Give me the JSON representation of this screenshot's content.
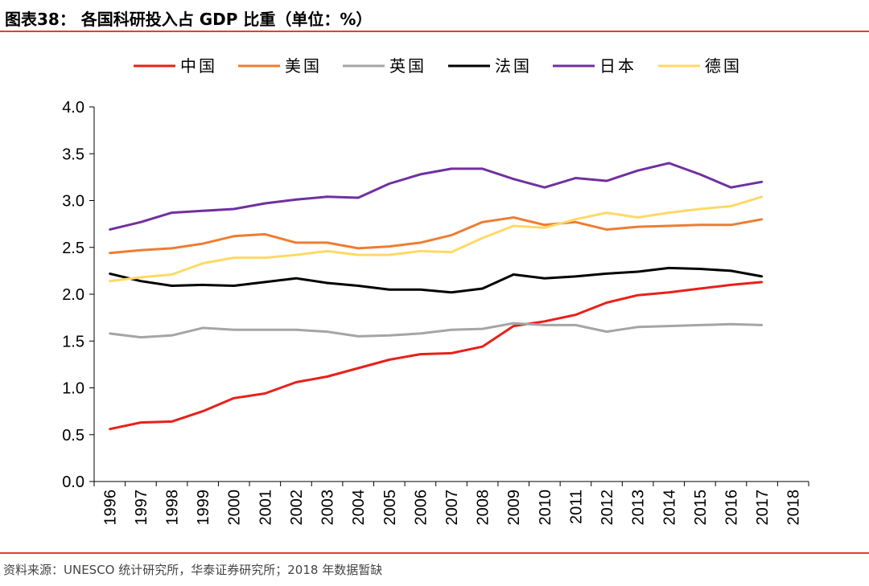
{
  "header": {
    "title": "图表38： 各国科研投入占 GDP 比重（单位：%）"
  },
  "footer": {
    "source": "资料来源：UNESCO 统计研究所，华泰证券研究所；2018 年数据暂缺"
  },
  "chart_data": {
    "type": "line",
    "title": "各国科研投入占 GDP 比重（单位：%）",
    "xlabel": "",
    "ylabel": "",
    "ylim": [
      0,
      4
    ],
    "yticks": [
      "0.0",
      "0.5",
      "1.0",
      "1.5",
      "2.0",
      "2.5",
      "3.0",
      "3.5",
      "4.0"
    ],
    "categories": [
      "1996",
      "1997",
      "1998",
      "1999",
      "2000",
      "2001",
      "2002",
      "2003",
      "2004",
      "2005",
      "2006",
      "2007",
      "2008",
      "2009",
      "2010",
      "2011",
      "2012",
      "2013",
      "2014",
      "2015",
      "2016",
      "2017",
      "2018"
    ],
    "legend_position": "top",
    "series": [
      {
        "name": "中国",
        "color": "#e8201a",
        "values": [
          0.56,
          0.63,
          0.64,
          0.75,
          0.89,
          0.94,
          1.06,
          1.12,
          1.21,
          1.3,
          1.36,
          1.37,
          1.44,
          1.66,
          1.71,
          1.78,
          1.91,
          1.99,
          2.02,
          2.06,
          2.1,
          2.13,
          null
        ]
      },
      {
        "name": "美国",
        "color": "#ed7d31",
        "values": [
          2.44,
          2.47,
          2.49,
          2.54,
          2.62,
          2.64,
          2.55,
          2.55,
          2.49,
          2.51,
          2.55,
          2.63,
          2.77,
          2.82,
          2.74,
          2.77,
          2.69,
          2.72,
          2.73,
          2.74,
          2.74,
          2.8,
          null
        ]
      },
      {
        "name": "英国",
        "color": "#a5a5a5",
        "values": [
          1.58,
          1.54,
          1.56,
          1.64,
          1.62,
          1.62,
          1.62,
          1.6,
          1.55,
          1.56,
          1.58,
          1.62,
          1.63,
          1.69,
          1.67,
          1.67,
          1.6,
          1.65,
          1.66,
          1.67,
          1.68,
          1.67,
          null
        ]
      },
      {
        "name": "法国",
        "color": "#000000",
        "values": [
          2.22,
          2.14,
          2.09,
          2.1,
          2.09,
          2.13,
          2.17,
          2.12,
          2.09,
          2.05,
          2.05,
          2.02,
          2.06,
          2.21,
          2.17,
          2.19,
          2.22,
          2.24,
          2.28,
          2.27,
          2.25,
          2.19,
          null
        ]
      },
      {
        "name": "日本",
        "color": "#7030a0",
        "values": [
          2.69,
          2.77,
          2.87,
          2.89,
          2.91,
          2.97,
          3.01,
          3.04,
          3.03,
          3.18,
          3.28,
          3.34,
          3.34,
          3.23,
          3.14,
          3.24,
          3.21,
          3.32,
          3.4,
          3.28,
          3.14,
          3.2,
          null
        ]
      },
      {
        "name": "德国",
        "color": "#ffd966",
        "values": [
          2.14,
          2.18,
          2.21,
          2.33,
          2.39,
          2.39,
          2.42,
          2.46,
          2.42,
          2.42,
          2.46,
          2.45,
          2.6,
          2.73,
          2.71,
          2.8,
          2.87,
          2.82,
          2.87,
          2.91,
          2.94,
          3.04,
          null
        ]
      }
    ]
  }
}
